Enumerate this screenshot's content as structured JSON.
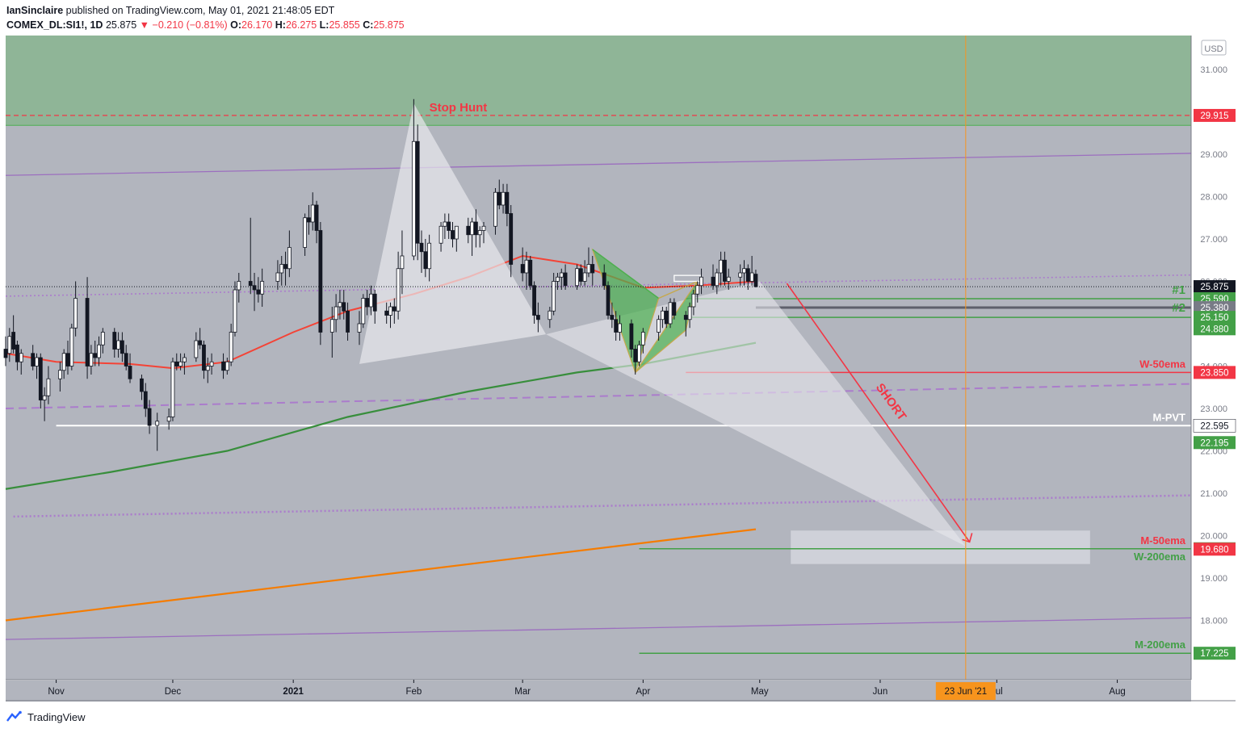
{
  "header": {
    "author": "IanSinclaire",
    "published": "published on TradingView.com, May 01, 2021 21:48:05 EDT",
    "symbol": "COMEX_DL:SI1!, 1D",
    "last": "25.875",
    "change_arrow": "▼",
    "change": "−0.210 (−0.81%)",
    "o_label": "O:",
    "o": "26.170",
    "h_label": "H:",
    "h": "26.275",
    "l_label": "L:",
    "l": "25.855",
    "c_label": "C:",
    "c": "25.875"
  },
  "footer": {
    "brand": "TradingView",
    "logo_icon": "tradingview-logo-icon"
  },
  "chart_data": {
    "type": "candlestick",
    "currency": "USD",
    "y_ticks": [
      "31.000",
      "29.000",
      "28.000",
      "27.000",
      "26.000",
      "24.000",
      "23.000",
      "22.000",
      "21.000",
      "20.000",
      "19.000",
      "18.000"
    ],
    "ylim": [
      16.6,
      31.8
    ],
    "x_ticks": [
      "Nov",
      "Dec",
      "2021",
      "Feb",
      "Mar",
      "Apr",
      "May",
      "Jun",
      "Jul",
      "Aug"
    ],
    "x_tick_dates": [
      "2020-11-01",
      "2020-12-01",
      "2021-01-01",
      "2021-02-01",
      "2021-03-01",
      "2021-04-01",
      "2021-05-01",
      "2021-06-01",
      "2021-07-01",
      "2021-08-01"
    ],
    "xlim": [
      "2020-10-19",
      "2021-08-20"
    ],
    "time_marker": {
      "date": "2021-06-23",
      "label": "23 Jun '21"
    },
    "annotations": {
      "stop_hunt": "Stop Hunt",
      "short": "SHORT",
      "t1": "#1",
      "t2": "#2",
      "w50": "W-50ema",
      "mpvt": "M-PVT",
      "m50": "M-50ema",
      "w200": "W-200ema",
      "m200": "M-200ema"
    },
    "price_labels": [
      {
        "value": 29.915,
        "text": "29.915",
        "color": "#f23645"
      },
      {
        "value": 25.875,
        "text": "25.875",
        "color": "#131722"
      },
      {
        "value": 25.59,
        "text": "25.590",
        "color": "#43a047"
      },
      {
        "value": 25.38,
        "text": "25.380",
        "color": "#787b86"
      },
      {
        "value": 25.15,
        "text": "25.150",
        "color": "#43a047"
      },
      {
        "value": 24.88,
        "text": "24.880",
        "color": "#43a047"
      },
      {
        "value": 23.85,
        "text": "23.850",
        "color": "#f23645"
      },
      {
        "value": 22.595,
        "text": "22.595",
        "color": "#ffffff"
      },
      {
        "value": 22.195,
        "text": "22.195",
        "color": "#43a047"
      },
      {
        "value": 19.69,
        "text": "19.690",
        "color": "#43a047"
      },
      {
        "value": 19.68,
        "text": "19.680",
        "color": "#f23645"
      },
      {
        "value": 17.225,
        "text": "17.225",
        "color": "#43a047"
      }
    ],
    "candles": [
      [
        "2020-10-19",
        24.4,
        24.7,
        24.0,
        24.2
      ],
      [
        "2020-10-20",
        24.3,
        24.9,
        24.1,
        24.7
      ],
      [
        "2020-10-21",
        24.8,
        25.2,
        24.3,
        24.4
      ],
      [
        "2020-10-22",
        24.5,
        24.6,
        23.9,
        24.1
      ],
      [
        "2020-10-23",
        24.1,
        24.4,
        23.8,
        24.3
      ],
      [
        "2020-10-26",
        24.3,
        24.5,
        23.9,
        24.0
      ],
      [
        "2020-10-27",
        24.0,
        24.3,
        23.7,
        24.2
      ],
      [
        "2020-10-28",
        24.2,
        24.3,
        23.0,
        23.2
      ],
      [
        "2020-10-29",
        23.2,
        23.5,
        22.7,
        23.3
      ],
      [
        "2020-10-30",
        23.3,
        24.0,
        23.1,
        23.7
      ],
      [
        "2020-11-02",
        23.7,
        24.1,
        23.4,
        23.9
      ],
      [
        "2020-11-03",
        23.9,
        24.4,
        23.7,
        24.3
      ],
      [
        "2020-11-04",
        24.3,
        24.6,
        23.8,
        24.0
      ],
      [
        "2020-11-05",
        24.0,
        25.0,
        23.9,
        24.9
      ],
      [
        "2020-11-06",
        24.9,
        26.0,
        24.7,
        25.6
      ],
      [
        "2020-11-09",
        25.6,
        26.1,
        23.7,
        24.0
      ],
      [
        "2020-11-10",
        24.0,
        24.5,
        23.8,
        24.3
      ],
      [
        "2020-11-11",
        24.3,
        24.6,
        24.0,
        24.2
      ],
      [
        "2020-11-12",
        24.2,
        24.7,
        24.0,
        24.5
      ],
      [
        "2020-11-13",
        24.5,
        24.9,
        24.3,
        24.8
      ],
      [
        "2020-11-16",
        24.8,
        24.9,
        24.2,
        24.4
      ],
      [
        "2020-11-17",
        24.4,
        24.8,
        24.2,
        24.6
      ],
      [
        "2020-11-18",
        24.6,
        24.8,
        24.1,
        24.3
      ],
      [
        "2020-11-19",
        24.3,
        24.5,
        23.9,
        24.0
      ],
      [
        "2020-11-20",
        24.0,
        24.3,
        23.6,
        23.7
      ],
      [
        "2020-11-23",
        23.7,
        23.8,
        23.2,
        23.4
      ],
      [
        "2020-11-24",
        23.4,
        23.6,
        22.8,
        23.0
      ],
      [
        "2020-11-25",
        23.0,
        23.2,
        22.4,
        22.6
      ],
      [
        "2020-11-27",
        22.6,
        22.9,
        22.0,
        22.7
      ],
      [
        "2020-11-30",
        22.7,
        23.0,
        22.5,
        22.8
      ],
      [
        "2020-12-01",
        22.8,
        24.2,
        22.7,
        24.1
      ],
      [
        "2020-12-02",
        24.1,
        24.3,
        23.9,
        24.0
      ],
      [
        "2020-12-03",
        24.0,
        24.3,
        23.9,
        24.1
      ],
      [
        "2020-12-04",
        24.1,
        24.3,
        23.8,
        24.2
      ],
      [
        "2020-12-07",
        24.2,
        24.8,
        24.1,
        24.6
      ],
      [
        "2020-12-08",
        24.6,
        24.9,
        24.4,
        24.5
      ],
      [
        "2020-12-09",
        24.5,
        24.6,
        23.7,
        23.9
      ],
      [
        "2020-12-10",
        23.9,
        24.2,
        23.6,
        24.0
      ],
      [
        "2020-12-11",
        24.0,
        24.3,
        23.8,
        24.1
      ],
      [
        "2020-12-14",
        24.1,
        24.3,
        23.7,
        23.9
      ],
      [
        "2020-12-15",
        23.9,
        24.2,
        23.8,
        24.1
      ],
      [
        "2020-12-16",
        24.1,
        25.0,
        24.0,
        24.8
      ],
      [
        "2020-12-17",
        24.8,
        26.0,
        24.7,
        25.8
      ],
      [
        "2020-12-18",
        25.8,
        26.2,
        25.5,
        26.0
      ],
      [
        "2020-12-21",
        26.0,
        27.5,
        25.7,
        25.9
      ],
      [
        "2020-12-22",
        25.9,
        26.2,
        25.3,
        25.8
      ],
      [
        "2020-12-23",
        25.8,
        26.1,
        25.5,
        25.7
      ],
      [
        "2020-12-24",
        25.7,
        26.3,
        25.4,
        26.0
      ],
      [
        "2020-12-28",
        26.0,
        26.5,
        25.8,
        26.2
      ],
      [
        "2020-12-29",
        26.2,
        26.6,
        25.9,
        26.4
      ],
      [
        "2020-12-30",
        26.4,
        26.7,
        25.9,
        26.3
      ],
      [
        "2020-12-31",
        26.3,
        27.2,
        26.1,
        26.8
      ],
      [
        "2021-01-04",
        26.8,
        27.6,
        26.6,
        27.5
      ],
      [
        "2021-01-05",
        27.5,
        27.8,
        27.1,
        27.4
      ],
      [
        "2021-01-06",
        27.4,
        28.1,
        27.2,
        27.8
      ],
      [
        "2021-01-07",
        27.8,
        27.9,
        26.9,
        27.2
      ],
      [
        "2021-01-08",
        27.2,
        27.4,
        24.5,
        24.8
      ],
      [
        "2021-01-11",
        24.8,
        25.4,
        24.2,
        25.1
      ],
      [
        "2021-01-12",
        25.1,
        25.7,
        24.8,
        25.4
      ],
      [
        "2021-01-13",
        25.4,
        25.8,
        25.1,
        25.5
      ],
      [
        "2021-01-14",
        25.5,
        25.8,
        25.1,
        25.3
      ],
      [
        "2021-01-15",
        25.3,
        25.5,
        24.6,
        24.8
      ],
      [
        "2021-01-18",
        24.8,
        25.3,
        24.5,
        25.0
      ],
      [
        "2021-01-19",
        25.0,
        25.7,
        24.9,
        25.6
      ],
      [
        "2021-01-20",
        25.6,
        25.8,
        25.2,
        25.4
      ],
      [
        "2021-01-21",
        25.4,
        25.9,
        25.2,
        25.7
      ],
      [
        "2021-01-22",
        25.7,
        25.8,
        25.0,
        25.3
      ],
      [
        "2021-01-25",
        25.3,
        25.5,
        25.0,
        25.2
      ],
      [
        "2021-01-26",
        25.2,
        25.5,
        24.9,
        25.4
      ],
      [
        "2021-01-27",
        25.4,
        25.6,
        25.0,
        25.3
      ],
      [
        "2021-01-28",
        25.3,
        26.7,
        25.1,
        26.3
      ],
      [
        "2021-01-29",
        26.3,
        27.2,
        25.7,
        26.6
      ],
      [
        "2021-02-01",
        26.6,
        30.3,
        26.5,
        29.3
      ],
      [
        "2021-02-02",
        29.3,
        29.7,
        26.5,
        26.9
      ],
      [
        "2021-02-03",
        26.9,
        27.2,
        26.2,
        26.7
      ],
      [
        "2021-02-04",
        26.7,
        27.0,
        26.1,
        26.3
      ],
      [
        "2021-02-05",
        26.3,
        27.1,
        26.0,
        26.9
      ],
      [
        "2021-02-08",
        26.9,
        27.4,
        26.7,
        27.3
      ],
      [
        "2021-02-09",
        27.3,
        27.6,
        27.0,
        27.4
      ],
      [
        "2021-02-10",
        27.4,
        27.6,
        27.0,
        27.2
      ],
      [
        "2021-02-11",
        27.2,
        27.4,
        26.8,
        27.0
      ],
      [
        "2021-02-12",
        27.0,
        27.3,
        26.7,
        27.3
      ],
      [
        "2021-02-15",
        27.3,
        27.5,
        26.9,
        27.1
      ],
      [
        "2021-02-16",
        27.1,
        27.5,
        26.6,
        27.4
      ],
      [
        "2021-02-17",
        27.4,
        27.7,
        26.8,
        27.1
      ],
      [
        "2021-02-18",
        27.1,
        27.3,
        26.8,
        27.2
      ],
      [
        "2021-02-19",
        27.2,
        27.4,
        26.9,
        27.3
      ],
      [
        "2021-02-22",
        27.3,
        28.2,
        27.1,
        28.1
      ],
      [
        "2021-02-23",
        28.1,
        28.4,
        27.7,
        27.8
      ],
      [
        "2021-02-24",
        27.8,
        28.3,
        27.6,
        28.1
      ],
      [
        "2021-02-25",
        28.1,
        28.3,
        27.3,
        27.6
      ],
      [
        "2021-02-26",
        27.6,
        27.8,
        26.1,
        26.4
      ],
      [
        "2021-03-01",
        26.4,
        26.8,
        26.0,
        26.2
      ],
      [
        "2021-03-02",
        26.2,
        26.7,
        25.8,
        26.5
      ],
      [
        "2021-03-03",
        26.5,
        26.6,
        25.8,
        25.9
      ],
      [
        "2021-03-04",
        25.9,
        26.0,
        25.0,
        25.2
      ],
      [
        "2021-03-05",
        25.2,
        25.5,
        24.8,
        25.1
      ],
      [
        "2021-03-08",
        25.1,
        25.4,
        24.9,
        25.3
      ],
      [
        "2021-03-09",
        25.3,
        26.2,
        25.2,
        26.0
      ],
      [
        "2021-03-10",
        26.0,
        26.2,
        25.8,
        26.1
      ],
      [
        "2021-03-11",
        26.1,
        26.3,
        25.8,
        26.2
      ],
      [
        "2021-03-12",
        26.2,
        26.4,
        25.8,
        25.9
      ],
      [
        "2021-03-15",
        25.9,
        26.4,
        25.8,
        26.3
      ],
      [
        "2021-03-16",
        26.3,
        26.4,
        25.9,
        26.0
      ],
      [
        "2021-03-17",
        26.0,
        26.5,
        25.9,
        26.2
      ],
      [
        "2021-03-18",
        26.2,
        26.8,
        26.1,
        26.4
      ],
      [
        "2021-03-19",
        26.4,
        26.6,
        25.9,
        26.2
      ],
      [
        "2021-03-22",
        26.2,
        26.4,
        25.8,
        25.9
      ],
      [
        "2021-03-23",
        25.9,
        26.0,
        25.1,
        25.2
      ],
      [
        "2021-03-24",
        25.2,
        25.5,
        24.9,
        25.1
      ],
      [
        "2021-03-25",
        25.1,
        25.3,
        24.6,
        24.8
      ],
      [
        "2021-03-26",
        24.8,
        25.2,
        24.6,
        25.0
      ],
      [
        "2021-03-29",
        25.0,
        25.1,
        24.2,
        24.4
      ],
      [
        "2021-03-30",
        24.4,
        24.5,
        23.8,
        24.1
      ],
      [
        "2021-03-31",
        24.1,
        24.6,
        24.0,
        24.5
      ],
      [
        "2021-04-01",
        24.5,
        24.9,
        24.3,
        24.8
      ],
      [
        "2021-04-05",
        24.8,
        25.2,
        24.6,
        25.1
      ],
      [
        "2021-04-06",
        25.1,
        25.4,
        24.9,
        25.3
      ],
      [
        "2021-04-07",
        25.3,
        25.4,
        24.9,
        25.0
      ],
      [
        "2021-04-08",
        25.0,
        25.6,
        24.9,
        25.5
      ],
      [
        "2021-04-09",
        25.5,
        25.6,
        25.1,
        25.2
      ],
      [
        "2021-04-12",
        25.2,
        25.3,
        24.7,
        25.1
      ],
      [
        "2021-04-13",
        25.1,
        25.5,
        24.9,
        25.4
      ],
      [
        "2021-04-14",
        25.4,
        25.8,
        25.2,
        25.7
      ],
      [
        "2021-04-15",
        25.7,
        26.0,
        25.5,
        25.9
      ],
      [
        "2021-04-16",
        25.9,
        26.3,
        25.7,
        26.1
      ],
      [
        "2021-04-19",
        26.1,
        26.4,
        25.8,
        25.9
      ],
      [
        "2021-04-20",
        25.9,
        26.3,
        25.7,
        26.2
      ],
      [
        "2021-04-21",
        26.2,
        26.7,
        25.9,
        26.5
      ],
      [
        "2021-04-22",
        26.5,
        26.7,
        25.9,
        26.0
      ],
      [
        "2021-04-23",
        26.0,
        26.3,
        25.8,
        26.1
      ],
      [
        "2021-04-26",
        26.1,
        26.4,
        25.9,
        26.2
      ],
      [
        "2021-04-27",
        26.2,
        26.5,
        25.9,
        26.3
      ],
      [
        "2021-04-28",
        26.3,
        26.4,
        25.8,
        26.0
      ],
      [
        "2021-04-29",
        26.0,
        26.6,
        25.9,
        26.2
      ],
      [
        "2021-04-30",
        26.17,
        26.275,
        25.855,
        25.875
      ]
    ]
  }
}
